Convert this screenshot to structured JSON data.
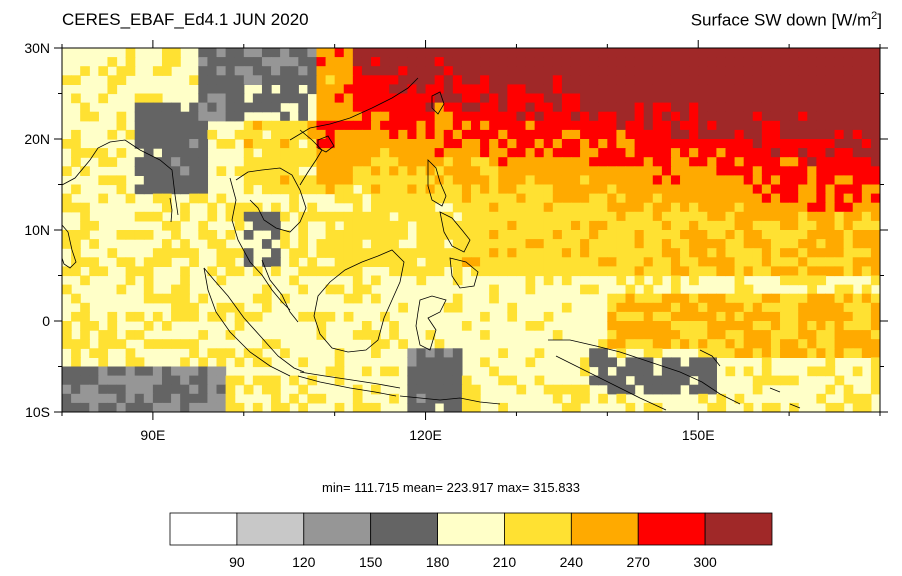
{
  "header": {
    "title_left": "CERES_EBAF_Ed4.1 JUN 2020",
    "title_right_main": "Surface SW down [W/m",
    "title_right_sup": "2",
    "title_right_end": "]"
  },
  "stats": {
    "text": "min= 111.715  mean= 223.917  max= 315.833"
  },
  "chart_data": {
    "type": "heatmap",
    "title": "CERES_EBAF_Ed4.1 JUN 2020",
    "variable": "Surface SW down [W/m2]",
    "xlim": [
      80,
      170
    ],
    "ylim": [
      -10,
      30
    ],
    "x_ticks": [
      {
        "value": 90,
        "label": "90E"
      },
      {
        "value": 120,
        "label": "120E"
      },
      {
        "value": 150,
        "label": "150E"
      }
    ],
    "y_ticks": [
      {
        "value": 30,
        "label": "30N"
      },
      {
        "value": 20,
        "label": "20N"
      },
      {
        "value": 10,
        "label": "10N"
      },
      {
        "value": 0,
        "label": "0"
      },
      {
        "value": -10,
        "label": "10S"
      }
    ],
    "colorbar": {
      "levels": [
        "90",
        "120",
        "150",
        "180",
        "210",
        "240",
        "270",
        "300"
      ],
      "colors": [
        "#ffffff",
        "#c8c8c8",
        "#969696",
        "#646464",
        "#ffffc8",
        "#ffe132",
        "#ffaa00",
        "#ff0000",
        "#a02828"
      ]
    },
    "summary": {
      "min": 111.715,
      "mean": 223.917,
      "max": 315.833
    }
  }
}
